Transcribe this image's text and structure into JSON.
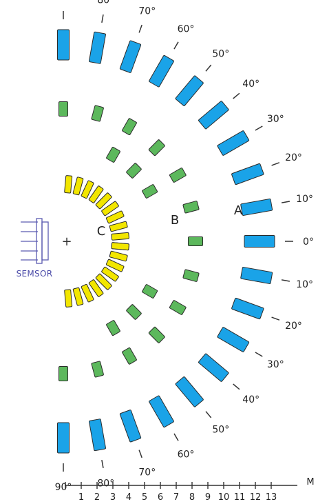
{
  "sensor": {
    "label": "SEMSOR",
    "center_mark": "+",
    "stroke_color": "#5a5ab0"
  },
  "zones": [
    {
      "id": "A",
      "label": "A",
      "color": "#1aa3e8"
    },
    {
      "id": "B",
      "label": "B",
      "color": "#5cb85c"
    },
    {
      "id": "C",
      "label": "C",
      "color": "#f2e600"
    }
  ],
  "angle_labels": [
    "90°",
    "80°",
    "70°",
    "60°",
    "50°",
    "40°",
    "30°",
    "20°",
    "10°",
    "0°"
  ],
  "ruler": {
    "unit": "M",
    "marks": [
      "1",
      "2",
      "3",
      "4",
      "5",
      "6",
      "7",
      "8",
      "9",
      "10",
      "11",
      "12",
      "13"
    ]
  },
  "colors": {
    "outline": "#2b2b2b",
    "text": "#222222"
  }
}
